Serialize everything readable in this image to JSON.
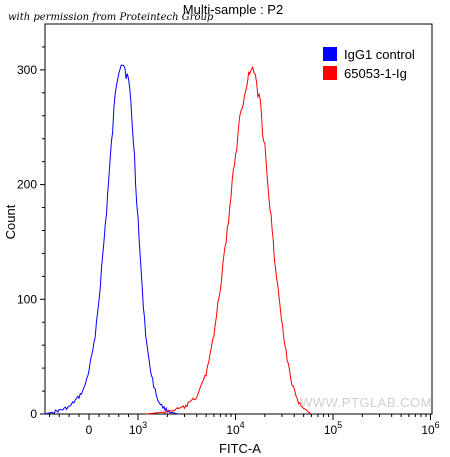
{
  "header": {
    "permission_note": "with permission from Proteintech Group",
    "title": "Multi-sample : P2"
  },
  "watermark": "WWW.PTGLAB.COM",
  "chart_data": {
    "type": "line",
    "xlabel": "FITC-A",
    "ylabel": "Count",
    "x_scale": "biexponential",
    "ylim": [
      0,
      340
    ],
    "grid": false,
    "legend_position": "top-right",
    "y_ticks": [
      {
        "value": 0,
        "label": "0"
      },
      {
        "value": 100,
        "label": "100"
      },
      {
        "value": 200,
        "label": "200"
      },
      {
        "value": 300,
        "label": "300"
      }
    ],
    "x_ticks": [
      {
        "value": 0,
        "base": "0",
        "exp": ""
      },
      {
        "value": 1000,
        "base": "10",
        "exp": "3"
      },
      {
        "value": 10000,
        "base": "10",
        "exp": "4"
      },
      {
        "value": 100000,
        "base": "10",
        "exp": "5"
      },
      {
        "value": 1000000,
        "base": "10",
        "exp": "6"
      }
    ],
    "series": [
      {
        "name": "IgG1 control",
        "color": "#0000ff",
        "x": [
          -900,
          -600,
          -400,
          -200,
          -100,
          0,
          100,
          200,
          300,
          400,
          500,
          550,
          600,
          650,
          700,
          750,
          800,
          850,
          900,
          950,
          1000,
          1100,
          1200,
          1300,
          1450,
          1600,
          1800,
          2000,
          2300,
          2600
        ],
        "y": [
          0,
          3,
          6,
          15,
          22,
          38,
          60,
          100,
          150,
          205,
          262,
          288,
          302,
          308,
          305,
          298,
          290,
          270,
          240,
          205,
          170,
          110,
          70,
          45,
          25,
          12,
          6,
          3,
          1,
          0
        ]
      },
      {
        "name": "65053-1-Ig",
        "color": "#ff0000",
        "x": [
          1200,
          2000,
          3000,
          4000,
          5000,
          6000,
          7000,
          8000,
          9000,
          10000,
          11000,
          12000,
          13000,
          14000,
          15000,
          16000,
          18000,
          20000,
          22000,
          25000,
          28000,
          32000,
          37000,
          43000,
          50000,
          60000
        ],
        "y": [
          0,
          2,
          6,
          15,
          35,
          70,
          110,
          150,
          190,
          225,
          255,
          275,
          290,
          298,
          300,
          295,
          268,
          230,
          190,
          140,
          100,
          60,
          30,
          12,
          4,
          0
        ]
      }
    ]
  }
}
